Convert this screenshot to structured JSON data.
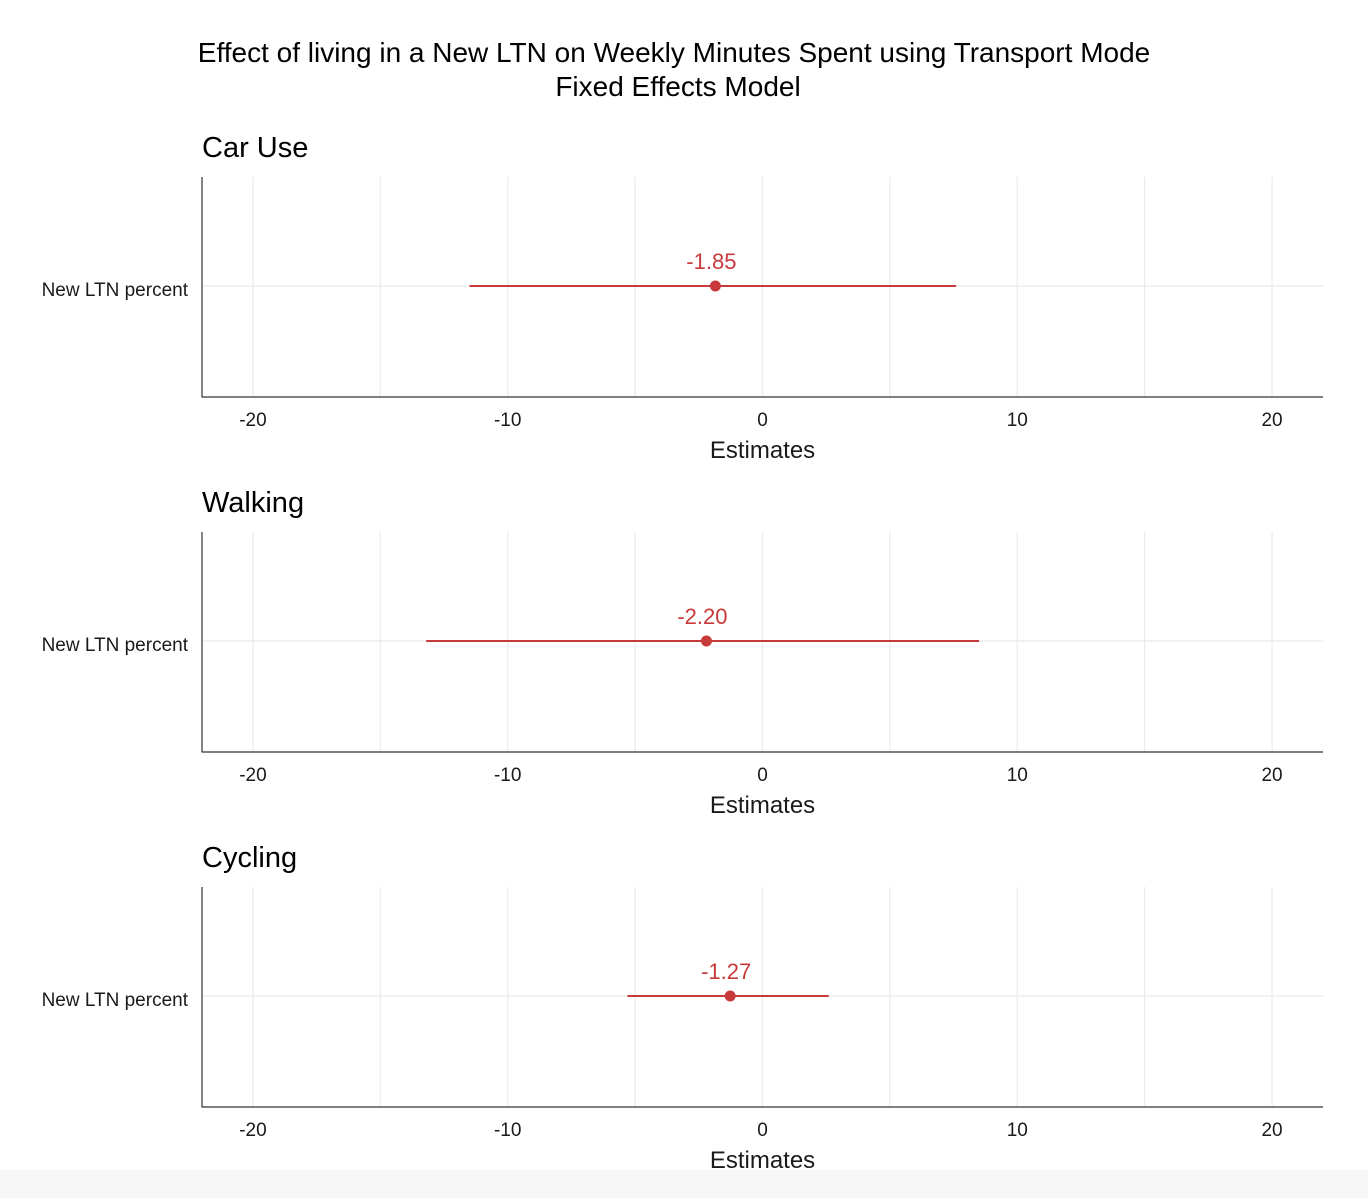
{
  "chart_data": {
    "type": "forest",
    "title_line1": "Effect of living in a New LTN on Weekly Minutes Spent using Transport Mode",
    "title_line2": "Fixed Effects Model",
    "xlabel": "Estimates",
    "xlim": [
      -22,
      22
    ],
    "xticks": [
      -20,
      -10,
      0,
      10,
      20
    ],
    "grid": true,
    "color": "#c8393b",
    "panels": [
      {
        "title": "Car Use",
        "term": "New LTN percent",
        "estimate": -1.85,
        "label": "-1.85",
        "ci_low": -11.5,
        "ci_high": 7.6
      },
      {
        "title": "Walking",
        "term": "New LTN percent",
        "estimate": -2.2,
        "label": "-2.20",
        "ci_low": -13.2,
        "ci_high": 8.5
      },
      {
        "title": "Cycling",
        "term": "New LTN percent",
        "estimate": -1.27,
        "label": "-1.27",
        "ci_low": -5.3,
        "ci_high": 2.6
      }
    ]
  }
}
